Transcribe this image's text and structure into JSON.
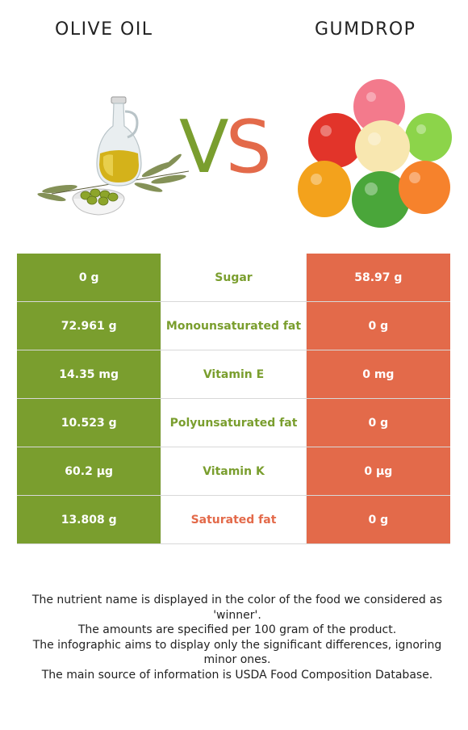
{
  "header": {
    "left_title": "OLIVE OIL",
    "right_title": "GUMDROP",
    "vs_v": "V",
    "vs_s": "S"
  },
  "colors": {
    "left_accent": "#7a9e2e",
    "right_accent": "#e36a4a"
  },
  "table": {
    "rows": [
      {
        "left": "0 g",
        "nutrient": "Sugar",
        "right": "58.97 g",
        "winner": "left"
      },
      {
        "left": "72.961 g",
        "nutrient": "Monounsaturated fat",
        "right": "0 g",
        "winner": "left"
      },
      {
        "left": "14.35 mg",
        "nutrient": "Vitamin E",
        "right": "0 mg",
        "winner": "left"
      },
      {
        "left": "10.523 g",
        "nutrient": "Polyunsaturated fat",
        "right": "0 g",
        "winner": "left"
      },
      {
        "left": "60.2 µg",
        "nutrient": "Vitamin K",
        "right": "0 µg",
        "winner": "left"
      },
      {
        "left": "13.808 g",
        "nutrient": "Saturated fat",
        "right": "0 g",
        "winner": "right"
      }
    ]
  },
  "notes": {
    "line1": "The nutrient name is displayed in the color of the food we considered as 'winner'.",
    "line2": "The amounts are specified per 100 gram of the product.",
    "line3": "The infographic aims to display only the significant differences, ignoring minor ones.",
    "line4": "The main source of information is USDA Food Composition Database."
  }
}
